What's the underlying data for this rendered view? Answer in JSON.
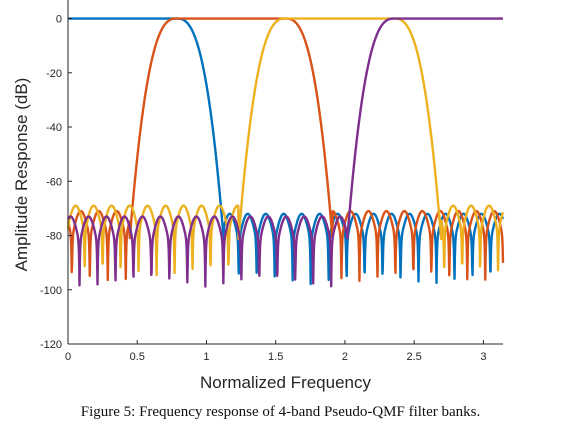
{
  "caption": "Figure 5: Frequency response of 4-band Pseudo-QMF filter banks.",
  "chart_data": {
    "type": "line",
    "title": "",
    "xlabel": "Normalized Frequency",
    "ylabel": "Amplitude Response (dB)",
    "xlim": [
      0,
      3.14159
    ],
    "ylim": [
      -120,
      5
    ],
    "xticks": [
      0,
      0.5,
      1,
      1.5,
      2,
      2.5,
      3
    ],
    "xtick_labels": [
      "0",
      "0.5",
      "1",
      "1.5",
      "2",
      "2.5",
      "3"
    ],
    "yticks": [
      0,
      -20,
      -40,
      -60,
      -80,
      -100,
      -120
    ],
    "ytick_labels": [
      "0",
      "-20",
      "-40",
      "-60",
      "-80",
      "-100",
      "-120"
    ],
    "grid": false,
    "series": [
      {
        "color": "#0072BD",
        "passband": [
          0.0,
          0.785
        ],
        "stopband_level": -80
      },
      {
        "color": "#D95319",
        "passband": [
          0.785,
          1.571
        ],
        "stopband_level": -79
      },
      {
        "color": "#EDB120",
        "passband": [
          1.571,
          2.356
        ],
        "stopband_level": -77
      },
      {
        "color": "#7E2F8E",
        "passband": [
          2.356,
          3.1416
        ],
        "stopband_level": -81
      }
    ]
  }
}
